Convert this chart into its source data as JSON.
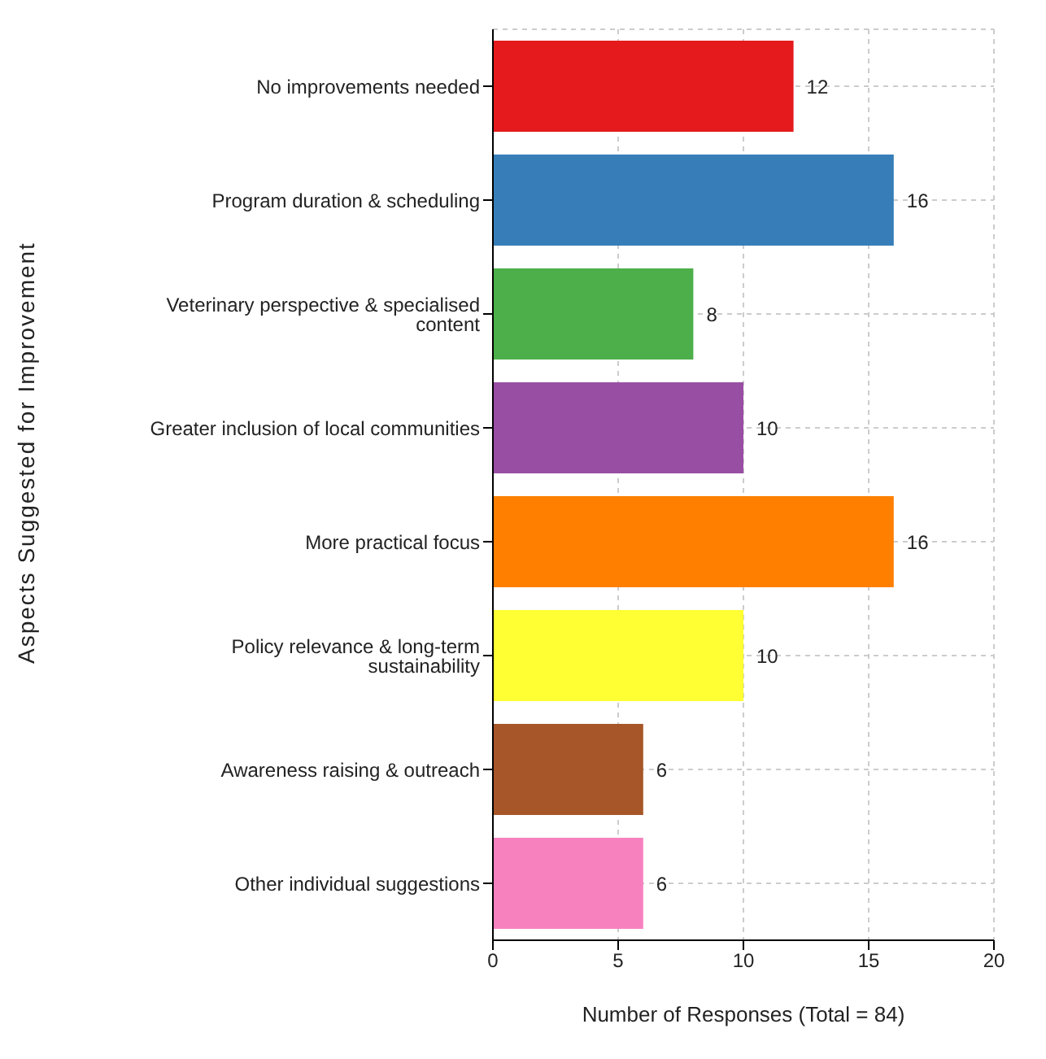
{
  "chart_data": {
    "type": "bar",
    "orientation": "horizontal",
    "categories": [
      "No improvements needed",
      "Program duration & scheduling",
      "Veterinary perspective & specialised content",
      "Greater inclusion of local communities",
      "More practical focus",
      "Policy relevance & long-term sustainability",
      "Awareness raising & outreach",
      "Other individual suggestions"
    ],
    "values": [
      12,
      16,
      8,
      10,
      16,
      10,
      6,
      6
    ],
    "colors": [
      "#e41a1c",
      "#377eb8",
      "#4daf4a",
      "#984ea3",
      "#ff7f00",
      "#ffff33",
      "#a65628",
      "#f781bf"
    ],
    "xlim": [
      0,
      20
    ],
    "xticks": [
      0,
      5,
      10,
      15,
      20
    ],
    "xlabel": "Number of Responses (Total = 84)",
    "ylabel": "Aspects Suggested for Improvement",
    "grid": true,
    "data_labels": true
  }
}
